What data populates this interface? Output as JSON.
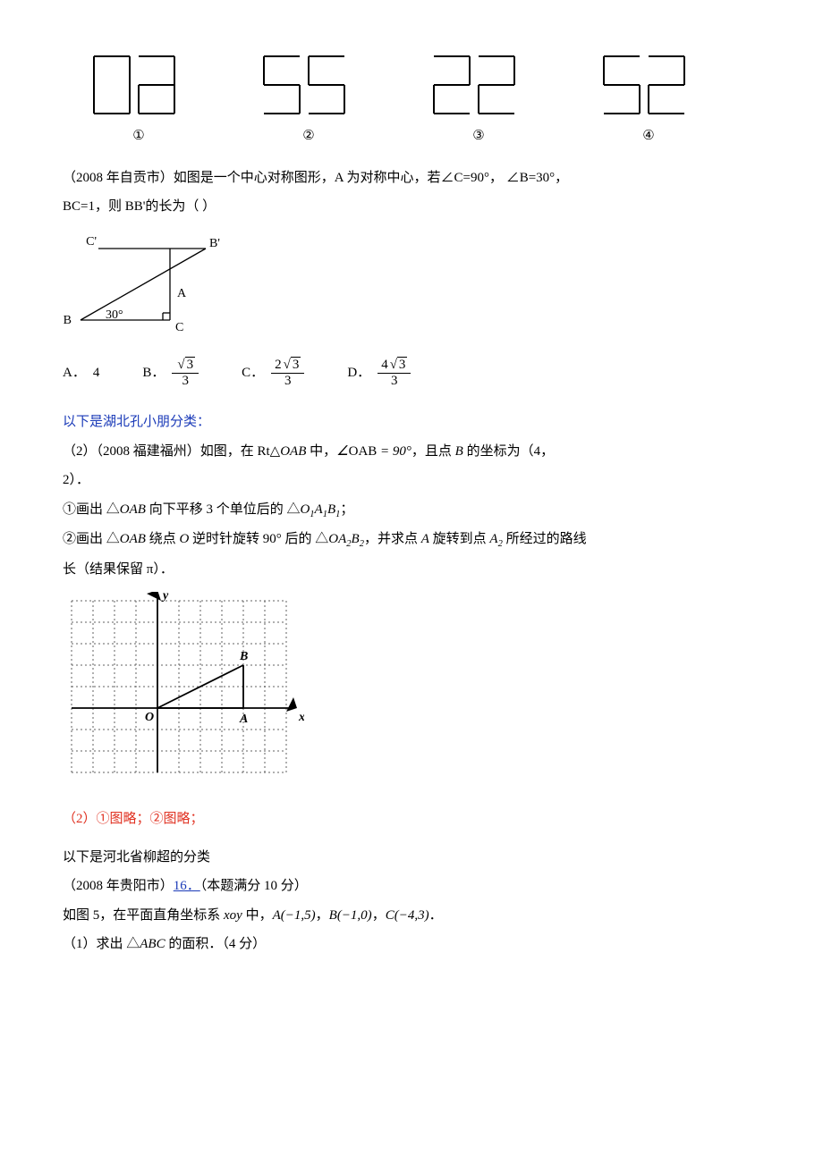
{
  "digits": {
    "items": [
      {
        "glyph": "96",
        "label": "①",
        "segments": [
          [
            1,
            1,
            1,
            0,
            1,
            1,
            1
          ],
          [
            1,
            0,
            1,
            1,
            1,
            1,
            1
          ]
        ]
      },
      {
        "glyph": "55",
        "label": "②",
        "segments": [
          [
            1,
            1,
            0,
            1,
            0,
            1,
            1
          ],
          [
            1,
            1,
            0,
            1,
            0,
            1,
            1
          ]
        ]
      },
      {
        "glyph": "22",
        "label": "③",
        "segments": [
          [
            1,
            0,
            1,
            1,
            1,
            0,
            1
          ],
          [
            1,
            0,
            1,
            1,
            1,
            0,
            1
          ]
        ]
      },
      {
        "glyph": "52",
        "label": "④",
        "segments": [
          [
            1,
            1,
            0,
            1,
            0,
            1,
            1
          ],
          [
            1,
            0,
            1,
            1,
            1,
            0,
            1
          ]
        ]
      }
    ],
    "digit_width": 40,
    "digit_height": 64,
    "gap": 10,
    "stroke": "#000000",
    "stroke_width": 2
  },
  "q_zigong": {
    "text_prefix": "（2008 年自贡市）如图是一个中心对称图形，A 为对称中心，若∠C=90°， ∠B=30°，",
    "text_line2": "BC=1，则 BB'的长为（    ）",
    "figure": {
      "labels": {
        "Cp": "C'",
        "Bp": "B'",
        "A": "A",
        "B": "B",
        "C": "C",
        "angle": "30°"
      },
      "stroke": "#000000",
      "fill": "#ffffff"
    },
    "options": {
      "A": {
        "prefix": "A．",
        "value": "4"
      },
      "B": {
        "prefix": "B．",
        "num": "√3",
        "den": "3"
      },
      "C": {
        "prefix": "C．",
        "num": "2√3",
        "den": "3"
      },
      "D": {
        "prefix": "D．",
        "num": "4√3",
        "den": "3"
      }
    }
  },
  "section_blue": "以下是湖北孔小朋分类：",
  "q_fuzhou": {
    "line1_a": "（2）（2008 福建福州）如图，在 Rt△",
    "line1_oab": "OAB",
    "line1_b": " 中，",
    "line1_angle": "∠OAB = 90°",
    "line1_c": "，且点 ",
    "line1_B": "B",
    "line1_d": " 的坐标为（4，",
    "line1_e": "2）．",
    "step1_a": "①画出 △",
    "step1_b": " 向下平移 3 个单位后的 △",
    "step1_tri2": "O₁A₁B₁",
    "step1_c": "；",
    "step2_a": "②画出 △",
    "step2_b": " 绕点 ",
    "step2_O": "O",
    "step2_c": " 逆时针旋转 90° 后的 △",
    "step2_tri2": "OA₂B₂",
    "step2_d": "，并求点 ",
    "step2_A": "A",
    "step2_e": " 旋转到点 ",
    "step2_A2": "A₂",
    "step2_f": " 所经过的路线",
    "step2_g": "长（结果保留 π）．",
    "answer": "（2）①图略；②图略；",
    "grid": {
      "cols": 10,
      "rows": 8,
      "cell": 24,
      "dot_color": "#606060",
      "axis_color": "#000000",
      "origin_col": 4,
      "origin_row": 5,
      "labels": {
        "y": "y",
        "x": "x",
        "O": "O",
        "A": "A",
        "B": "B"
      },
      "A_point": {
        "col": 8,
        "row": 5
      },
      "B_point": {
        "col": 8,
        "row": 3
      }
    }
  },
  "section_hebei": "以下是河北省柳超的分类",
  "q_guiyang": {
    "line1_a": "（2008 年贵阳市）",
    "line1_link": "16．",
    "line1_b": "（本题满分 10 分）",
    "line2_a": "如图 5，在平面直角坐标系 ",
    "line2_xoy": "xoy",
    "line2_b": " 中，",
    "line2_A": "A(−1,5)",
    "line2_c": "，",
    "line2_B": "B(−1,0)",
    "line2_d": "，",
    "line2_C": "C(−4,3)",
    "line2_e": "．",
    "line3_a": "（1）求出 △",
    "line3_abc": "ABC",
    "line3_b": " 的面积．（4 分）"
  }
}
